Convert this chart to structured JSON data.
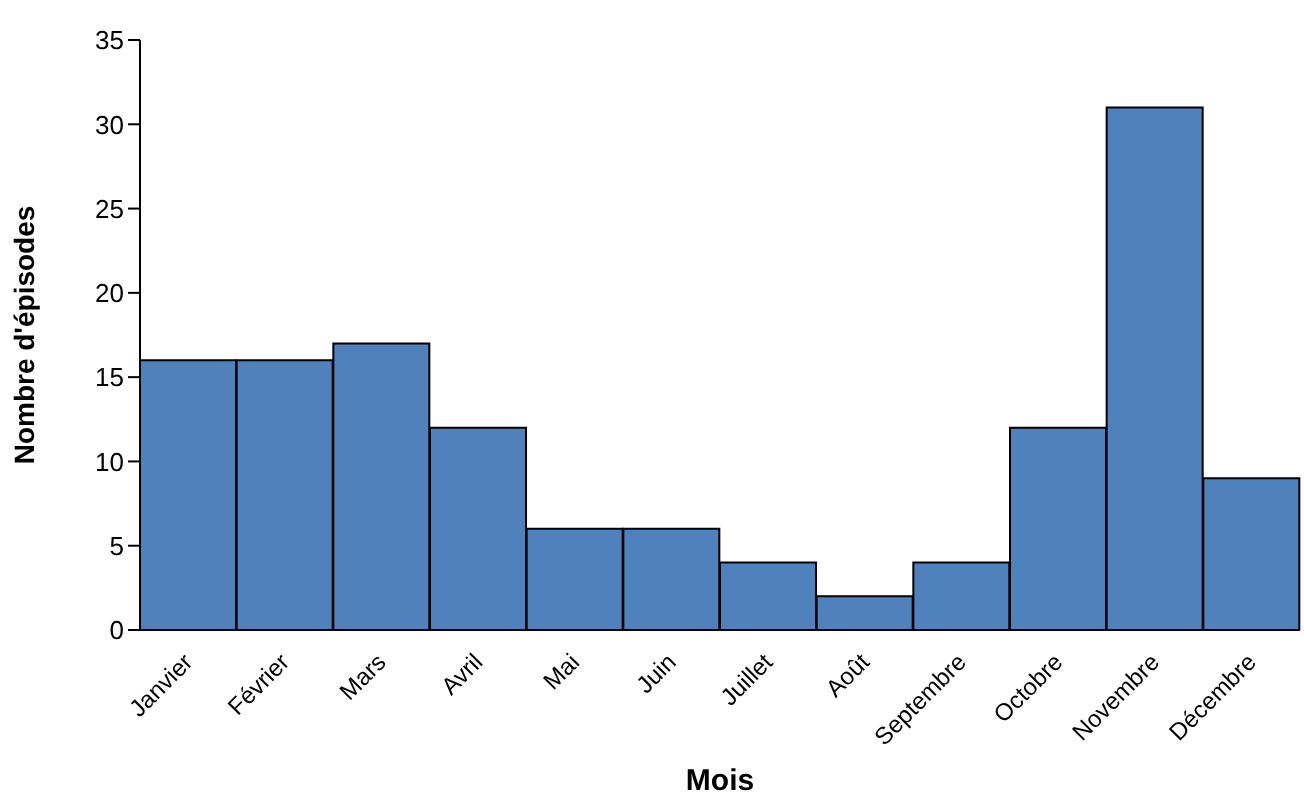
{
  "chart_data": {
    "type": "bar",
    "xlabel": "Mois",
    "ylabel": "Nombre d'épisodes",
    "categories": [
      "Janvier",
      "Février",
      "Mars",
      "Avril",
      "Mai",
      "Juin",
      "Juillet",
      "Août",
      "Septembre",
      "Octobre",
      "Novembre",
      "Décembre"
    ],
    "values": [
      16,
      16,
      17,
      12,
      6,
      6,
      4,
      2,
      4,
      12,
      31,
      9
    ],
    "color": "#4f81bd",
    "ylim": [
      0,
      35
    ],
    "yticks": [
      0,
      5,
      10,
      15,
      20,
      25,
      30,
      35
    ]
  }
}
